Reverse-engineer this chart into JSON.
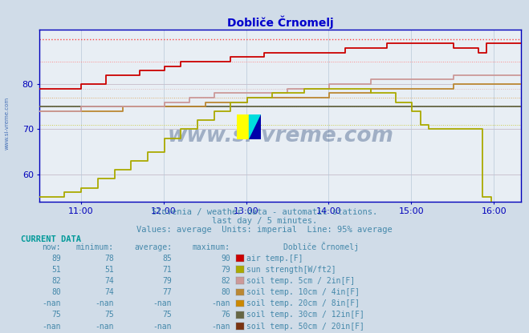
{
  "title": "Dobliče Črnomelj",
  "title_color": "#0000cc",
  "bg_color": "#d0dce8",
  "plot_bg_color": "#e8eef4",
  "grid_color": "#b8c8d8",
  "axis_color": "#0000bb",
  "text_color": "#4488aa",
  "subtitle1": "Slovenia / weather data - automatic stations.",
  "subtitle2": "last day / 5 minutes.",
  "subtitle3": "Values: average  Units: imperial  Line: 95% average",
  "xmin": 10.5,
  "xmax": 16.33,
  "ymin": 54,
  "ymax": 92,
  "yticks": [
    60,
    70,
    80
  ],
  "xtick_labels": [
    "11:00",
    "12:00",
    "13:00",
    "14:00",
    "15:00",
    "16:00"
  ],
  "xtick_positions": [
    11,
    12,
    13,
    14,
    15,
    16
  ],
  "air_temp_avg": 85,
  "air_temp_max": 90,
  "sun_avg": 71,
  "soil5_avg": 79,
  "soil10_avg": 77,
  "soil30_avg": 75,
  "legend_colors": {
    "air_temp": "#cc0000",
    "sun_strength": "#aaaa00",
    "soil_5cm": "#cc9999",
    "soil_10cm": "#bb8833",
    "soil_20cm": "#cc8800",
    "soil_30cm": "#666644",
    "soil_50cm": "#7a3311"
  },
  "table": {
    "rows": [
      [
        "89",
        "78",
        "85",
        "90",
        "air temp.[F]"
      ],
      [
        "51",
        "51",
        "71",
        "79",
        "sun strength[W/ft2]"
      ],
      [
        "82",
        "74",
        "79",
        "82",
        "soil temp. 5cm / 2in[F]"
      ],
      [
        "80",
        "74",
        "77",
        "80",
        "soil temp. 10cm / 4in[F]"
      ],
      [
        "-nan",
        "-nan",
        "-nan",
        "-nan",
        "soil temp. 20cm / 8in[F]"
      ],
      [
        "75",
        "75",
        "75",
        "76",
        "soil temp. 30cm / 12in[F]"
      ],
      [
        "-nan",
        "-nan",
        "-nan",
        "-nan",
        "soil temp. 50cm / 20in[F]"
      ]
    ]
  }
}
